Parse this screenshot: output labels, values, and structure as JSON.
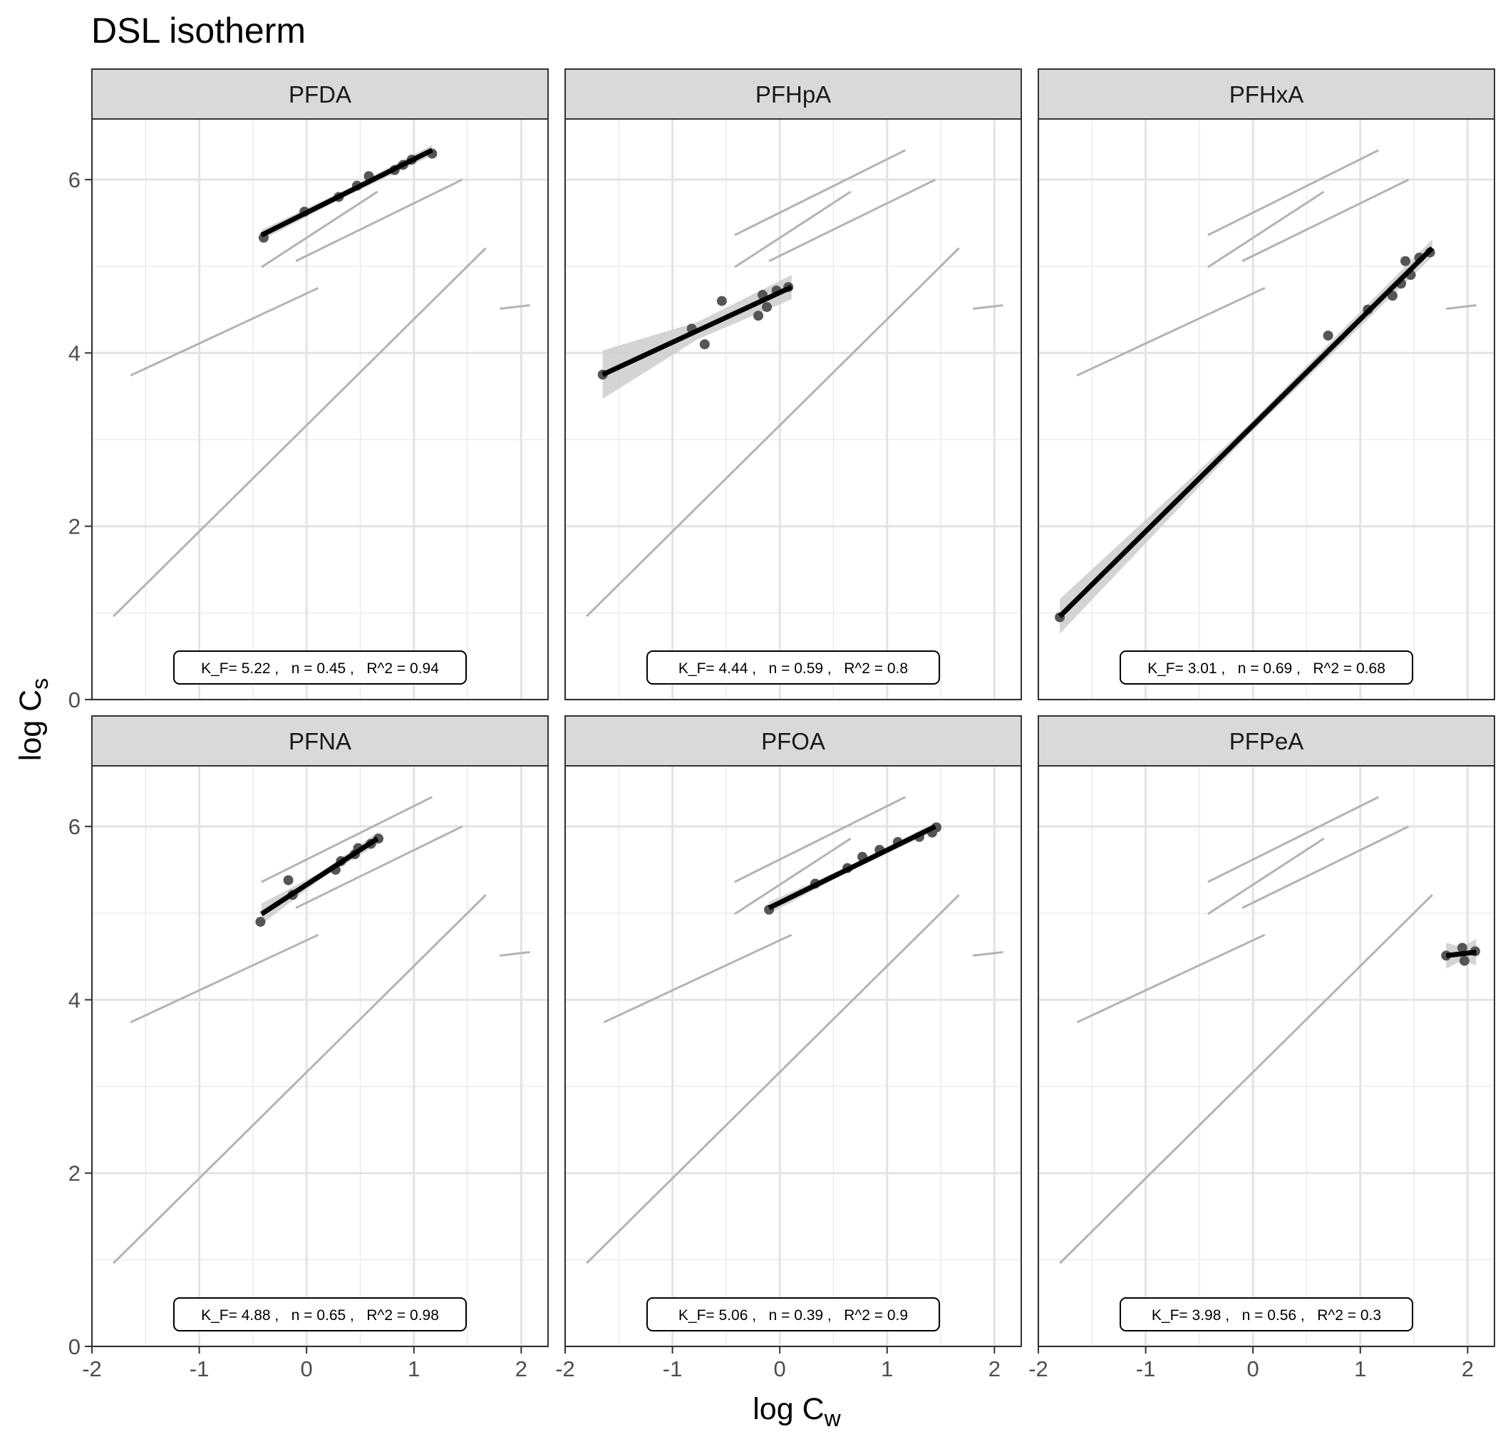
{
  "title": "DSL isotherm",
  "xlabel": {
    "base": "log C",
    "sub": "w"
  },
  "ylabel": {
    "base": "log C",
    "sub": "s"
  },
  "chart_data": {
    "type": "scatter",
    "facet_layout": "2x3",
    "xlim": [
      -2,
      2.25
    ],
    "ylim": [
      0,
      6.7
    ],
    "x_ticks": [
      -2,
      -1,
      0,
      1,
      2
    ],
    "x_tick_labels": [
      "-2",
      "-1",
      "0",
      "1",
      "2"
    ],
    "y_ticks": [
      0,
      2,
      4,
      6
    ],
    "y_tick_labels": [
      "0",
      "2",
      "4",
      "6"
    ],
    "grid": true,
    "colors": {
      "fit": "#000000",
      "points": "#555555",
      "background_lines": "#b3b3b3",
      "ribbon": "#cccccc",
      "strip": "#d9d9d9"
    },
    "background_fit_lines": [
      {
        "x": [
          -0.42,
          1.17
        ],
        "y": [
          5.36,
          6.34
        ]
      },
      {
        "x": [
          -0.42,
          0.66
        ],
        "y": [
          4.99,
          5.86
        ]
      },
      {
        "x": [
          -0.1,
          1.45
        ],
        "y": [
          5.06,
          6.0
        ]
      },
      {
        "x": [
          -1.64,
          0.11
        ],
        "y": [
          3.74,
          4.75
        ]
      },
      {
        "x": [
          -1.8,
          1.67
        ],
        "y": [
          0.96,
          5.21
        ]
      },
      {
        "x": [
          1.8,
          2.08
        ],
        "y": [
          4.51,
          4.55
        ]
      }
    ],
    "panels": [
      {
        "label": "PFDA",
        "annotation": "K_F= 5.22 ,   n = 0.45 ,   R^2 = 0.94",
        "points": [
          [
            -0.4,
            5.33
          ],
          [
            -0.02,
            5.63
          ],
          [
            0.3,
            5.8
          ],
          [
            0.47,
            5.93
          ],
          [
            0.58,
            6.04
          ],
          [
            0.82,
            6.11
          ],
          [
            0.9,
            6.17
          ],
          [
            0.98,
            6.23
          ],
          [
            1.17,
            6.3
          ]
        ],
        "fit": {
          "x": [
            -0.42,
            1.17
          ],
          "y": [
            5.36,
            6.34
          ]
        },
        "ribbon_halfwidth": [
          0.06,
          0.04,
          0.06
        ]
      },
      {
        "label": "PFHpA",
        "annotation": "K_F= 4.44 ,   n = 0.59 ,   R^2 = 0.8",
        "points": [
          [
            -1.65,
            3.75
          ],
          [
            -0.82,
            4.28
          ],
          [
            -0.7,
            4.1
          ],
          [
            -0.54,
            4.6
          ],
          [
            -0.2,
            4.43
          ],
          [
            -0.16,
            4.67
          ],
          [
            -0.12,
            4.53
          ],
          [
            -0.03,
            4.72
          ],
          [
            0.08,
            4.76
          ]
        ],
        "fit": {
          "x": [
            -1.65,
            0.11
          ],
          "y": [
            3.75,
            4.76
          ]
        },
        "ribbon_halfwidth": [
          0.28,
          0.1,
          0.14
        ]
      },
      {
        "label": "PFHxA",
        "annotation": "K_F= 3.01 ,   n = 0.69 ,   R^2 = 0.68",
        "points": [
          [
            -1.8,
            0.95
          ],
          [
            0.7,
            4.2
          ],
          [
            1.07,
            4.5
          ],
          [
            1.3,
            4.66
          ],
          [
            1.38,
            4.8
          ],
          [
            1.42,
            5.06
          ],
          [
            1.47,
            4.9
          ],
          [
            1.55,
            5.1
          ],
          [
            1.65,
            5.16
          ]
        ],
        "fit": {
          "x": [
            -1.8,
            1.67
          ],
          "y": [
            0.96,
            5.21
          ]
        },
        "ribbon_halfwidth": [
          0.2,
          0.06,
          0.1
        ]
      },
      {
        "label": "PFNA",
        "annotation": "K_F= 4.88 ,   n = 0.65 ,   R^2 = 0.98",
        "points": [
          [
            -0.43,
            4.9
          ],
          [
            -0.17,
            5.38
          ],
          [
            -0.13,
            5.21
          ],
          [
            0.27,
            5.5
          ],
          [
            0.32,
            5.6
          ],
          [
            0.45,
            5.68
          ],
          [
            0.48,
            5.75
          ],
          [
            0.6,
            5.8
          ],
          [
            0.67,
            5.86
          ]
        ],
        "fit": {
          "x": [
            -0.42,
            0.66
          ],
          "y": [
            4.99,
            5.86
          ]
        },
        "ribbon_halfwidth": [
          0.12,
          0.04,
          0.07
        ]
      },
      {
        "label": "PFOA",
        "annotation": "K_F= 5.06 ,   n = 0.39 ,   R^2 = 0.9",
        "points": [
          [
            -0.1,
            5.04
          ],
          [
            0.33,
            5.34
          ],
          [
            0.63,
            5.52
          ],
          [
            0.77,
            5.65
          ],
          [
            0.93,
            5.73
          ],
          [
            1.1,
            5.82
          ],
          [
            1.3,
            5.88
          ],
          [
            1.42,
            5.93
          ],
          [
            1.46,
            5.99
          ]
        ],
        "fit": {
          "x": [
            -0.1,
            1.45
          ],
          "y": [
            5.06,
            6.0
          ]
        },
        "ribbon_halfwidth": [
          0.07,
          0.03,
          0.05
        ]
      },
      {
        "label": "PFPeA",
        "annotation": "K_F= 3.98 ,   n = 0.56 ,   R^2 = 0.3",
        "points": [
          [
            1.8,
            4.51
          ],
          [
            1.95,
            4.6
          ],
          [
            1.97,
            4.45
          ],
          [
            2.07,
            4.56
          ]
        ],
        "fit": {
          "x": [
            1.8,
            2.08
          ],
          "y": [
            4.51,
            4.55
          ]
        },
        "ribbon_halfwidth": [
          0.15,
          0.08,
          0.15
        ]
      }
    ]
  }
}
